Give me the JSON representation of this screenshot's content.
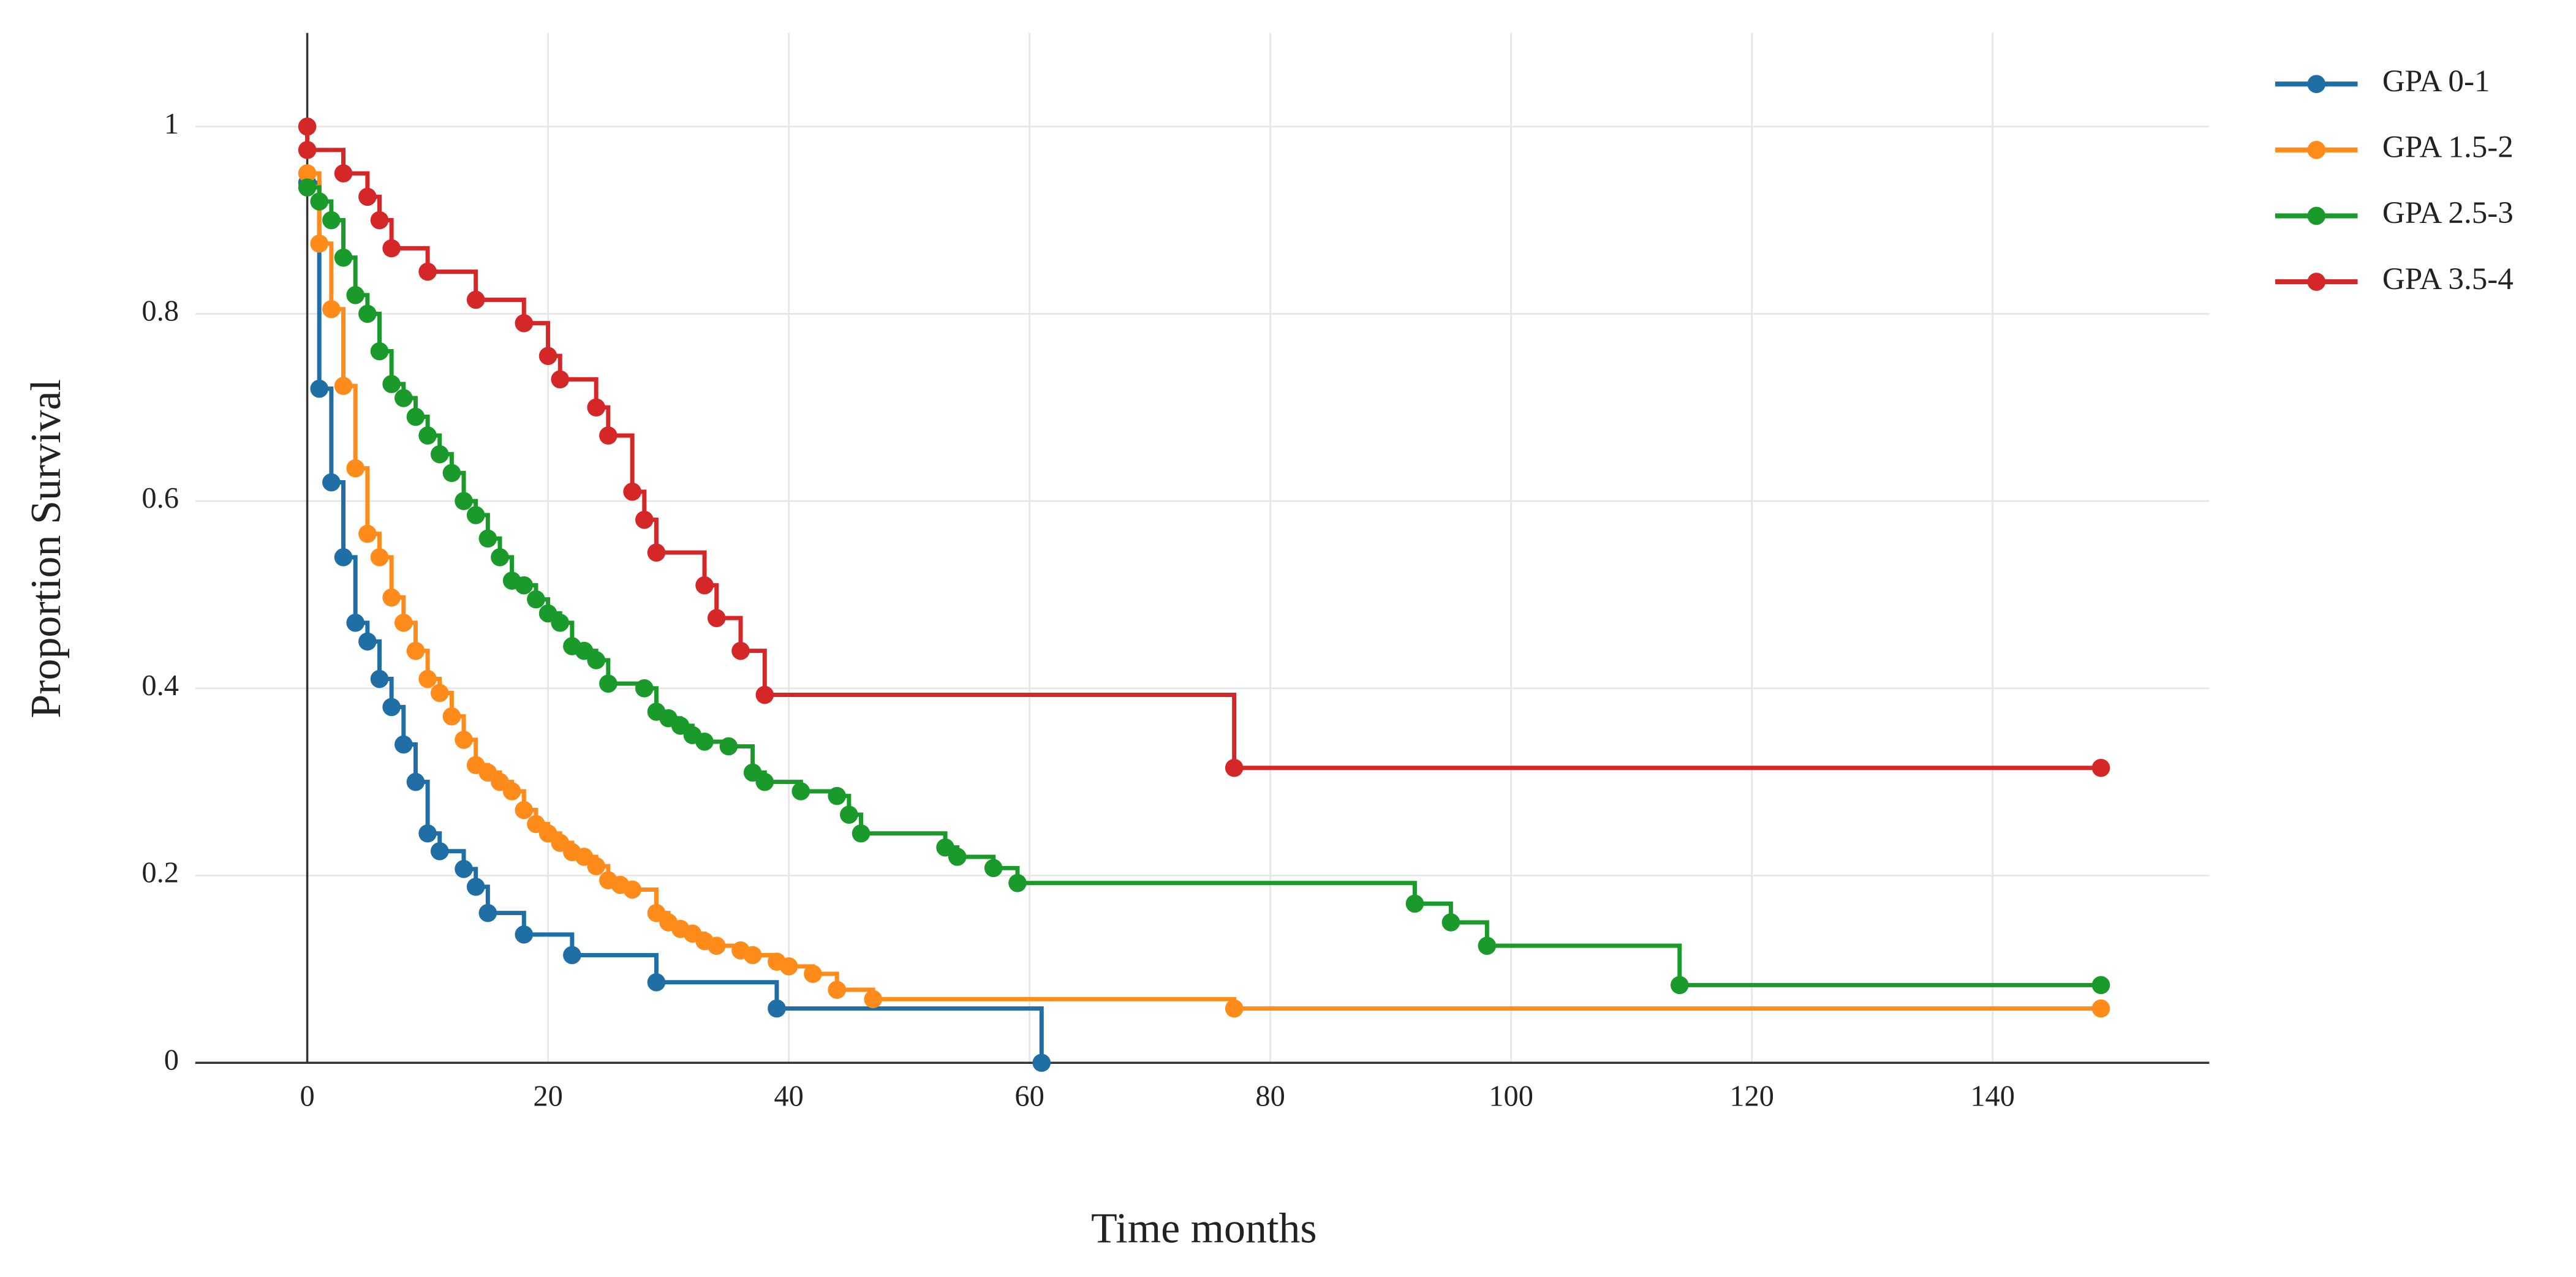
{
  "chart_data": {
    "type": "step",
    "x_label": "Time months",
    "y_label": "Proportion Survival",
    "xlim": [
      -9.3,
      158
    ],
    "ylim": [
      0,
      1.1
    ],
    "xticks": [
      0,
      20,
      40,
      60,
      80,
      100,
      120,
      140
    ],
    "yticks": [
      0,
      0.2,
      0.4,
      0.6,
      0.8,
      1
    ],
    "grid": true,
    "legend": "right",
    "series": [
      {
        "name": "GPA 0-1",
        "color": "#1f6ea6",
        "x": [
          0,
          1,
          2,
          3,
          4,
          5,
          6,
          7,
          8,
          9,
          10,
          11,
          13,
          14,
          15,
          18,
          22,
          29,
          39,
          61
        ],
        "values": [
          0.94,
          0.72,
          0.62,
          0.54,
          0.47,
          0.45,
          0.41,
          0.38,
          0.34,
          0.3,
          0.245,
          0.226,
          0.207,
          0.188,
          0.16,
          0.137,
          0.115,
          0.086,
          0.058,
          0
        ]
      },
      {
        "name": "GPA 1.5-2",
        "color": "#ff8c1a",
        "x": [
          0,
          1,
          2,
          3,
          4,
          5,
          6,
          7,
          8,
          9,
          10,
          11,
          12,
          13,
          14,
          15,
          16,
          17,
          18,
          19,
          20,
          21,
          22,
          23,
          24,
          25,
          26,
          27,
          29,
          30,
          31,
          32,
          33,
          34,
          36,
          37,
          39,
          40,
          42,
          44,
          47,
          77,
          149
        ],
        "values": [
          0.95,
          0.875,
          0.805,
          0.723,
          0.635,
          0.565,
          0.54,
          0.497,
          0.47,
          0.44,
          0.41,
          0.395,
          0.37,
          0.345,
          0.318,
          0.31,
          0.3,
          0.29,
          0.27,
          0.255,
          0.245,
          0.235,
          0.225,
          0.22,
          0.21,
          0.195,
          0.19,
          0.185,
          0.16,
          0.15,
          0.143,
          0.138,
          0.13,
          0.125,
          0.12,
          0.115,
          0.108,
          0.103,
          0.095,
          0.078,
          0.068,
          0.058,
          0.058
        ]
      },
      {
        "name": "GPA 2.5-3",
        "color": "#1a9a2a",
        "x": [
          0,
          1,
          2,
          3,
          4,
          5,
          6,
          7,
          8,
          9,
          10,
          11,
          12,
          13,
          14,
          15,
          16,
          17,
          18,
          19,
          20,
          21,
          22,
          23,
          24,
          25,
          28,
          29,
          30,
          31,
          32,
          33,
          35,
          37,
          38,
          41,
          44,
          45,
          46,
          53,
          54,
          57,
          59,
          92,
          95,
          98,
          114,
          149
        ],
        "values": [
          0.935,
          0.92,
          0.9,
          0.86,
          0.82,
          0.8,
          0.76,
          0.725,
          0.71,
          0.69,
          0.67,
          0.65,
          0.63,
          0.6,
          0.585,
          0.56,
          0.54,
          0.515,
          0.51,
          0.495,
          0.48,
          0.47,
          0.445,
          0.44,
          0.43,
          0.405,
          0.4,
          0.375,
          0.368,
          0.36,
          0.35,
          0.343,
          0.338,
          0.31,
          0.3,
          0.29,
          0.285,
          0.265,
          0.245,
          0.23,
          0.22,
          0.208,
          0.192,
          0.17,
          0.15,
          0.125,
          0.083,
          0.083
        ]
      },
      {
        "name": "GPA 3.5-4",
        "color": "#d62728",
        "x": [
          0,
          0,
          3,
          5,
          6,
          7,
          10,
          14,
          18,
          20,
          21,
          24,
          25,
          27,
          28,
          29,
          33,
          34,
          36,
          38,
          77,
          149
        ],
        "values": [
          1,
          0.975,
          0.95,
          0.925,
          0.9,
          0.87,
          0.845,
          0.815,
          0.79,
          0.755,
          0.73,
          0.7,
          0.67,
          0.61,
          0.58,
          0.545,
          0.51,
          0.475,
          0.44,
          0.393,
          0.315,
          0.315
        ]
      }
    ]
  }
}
